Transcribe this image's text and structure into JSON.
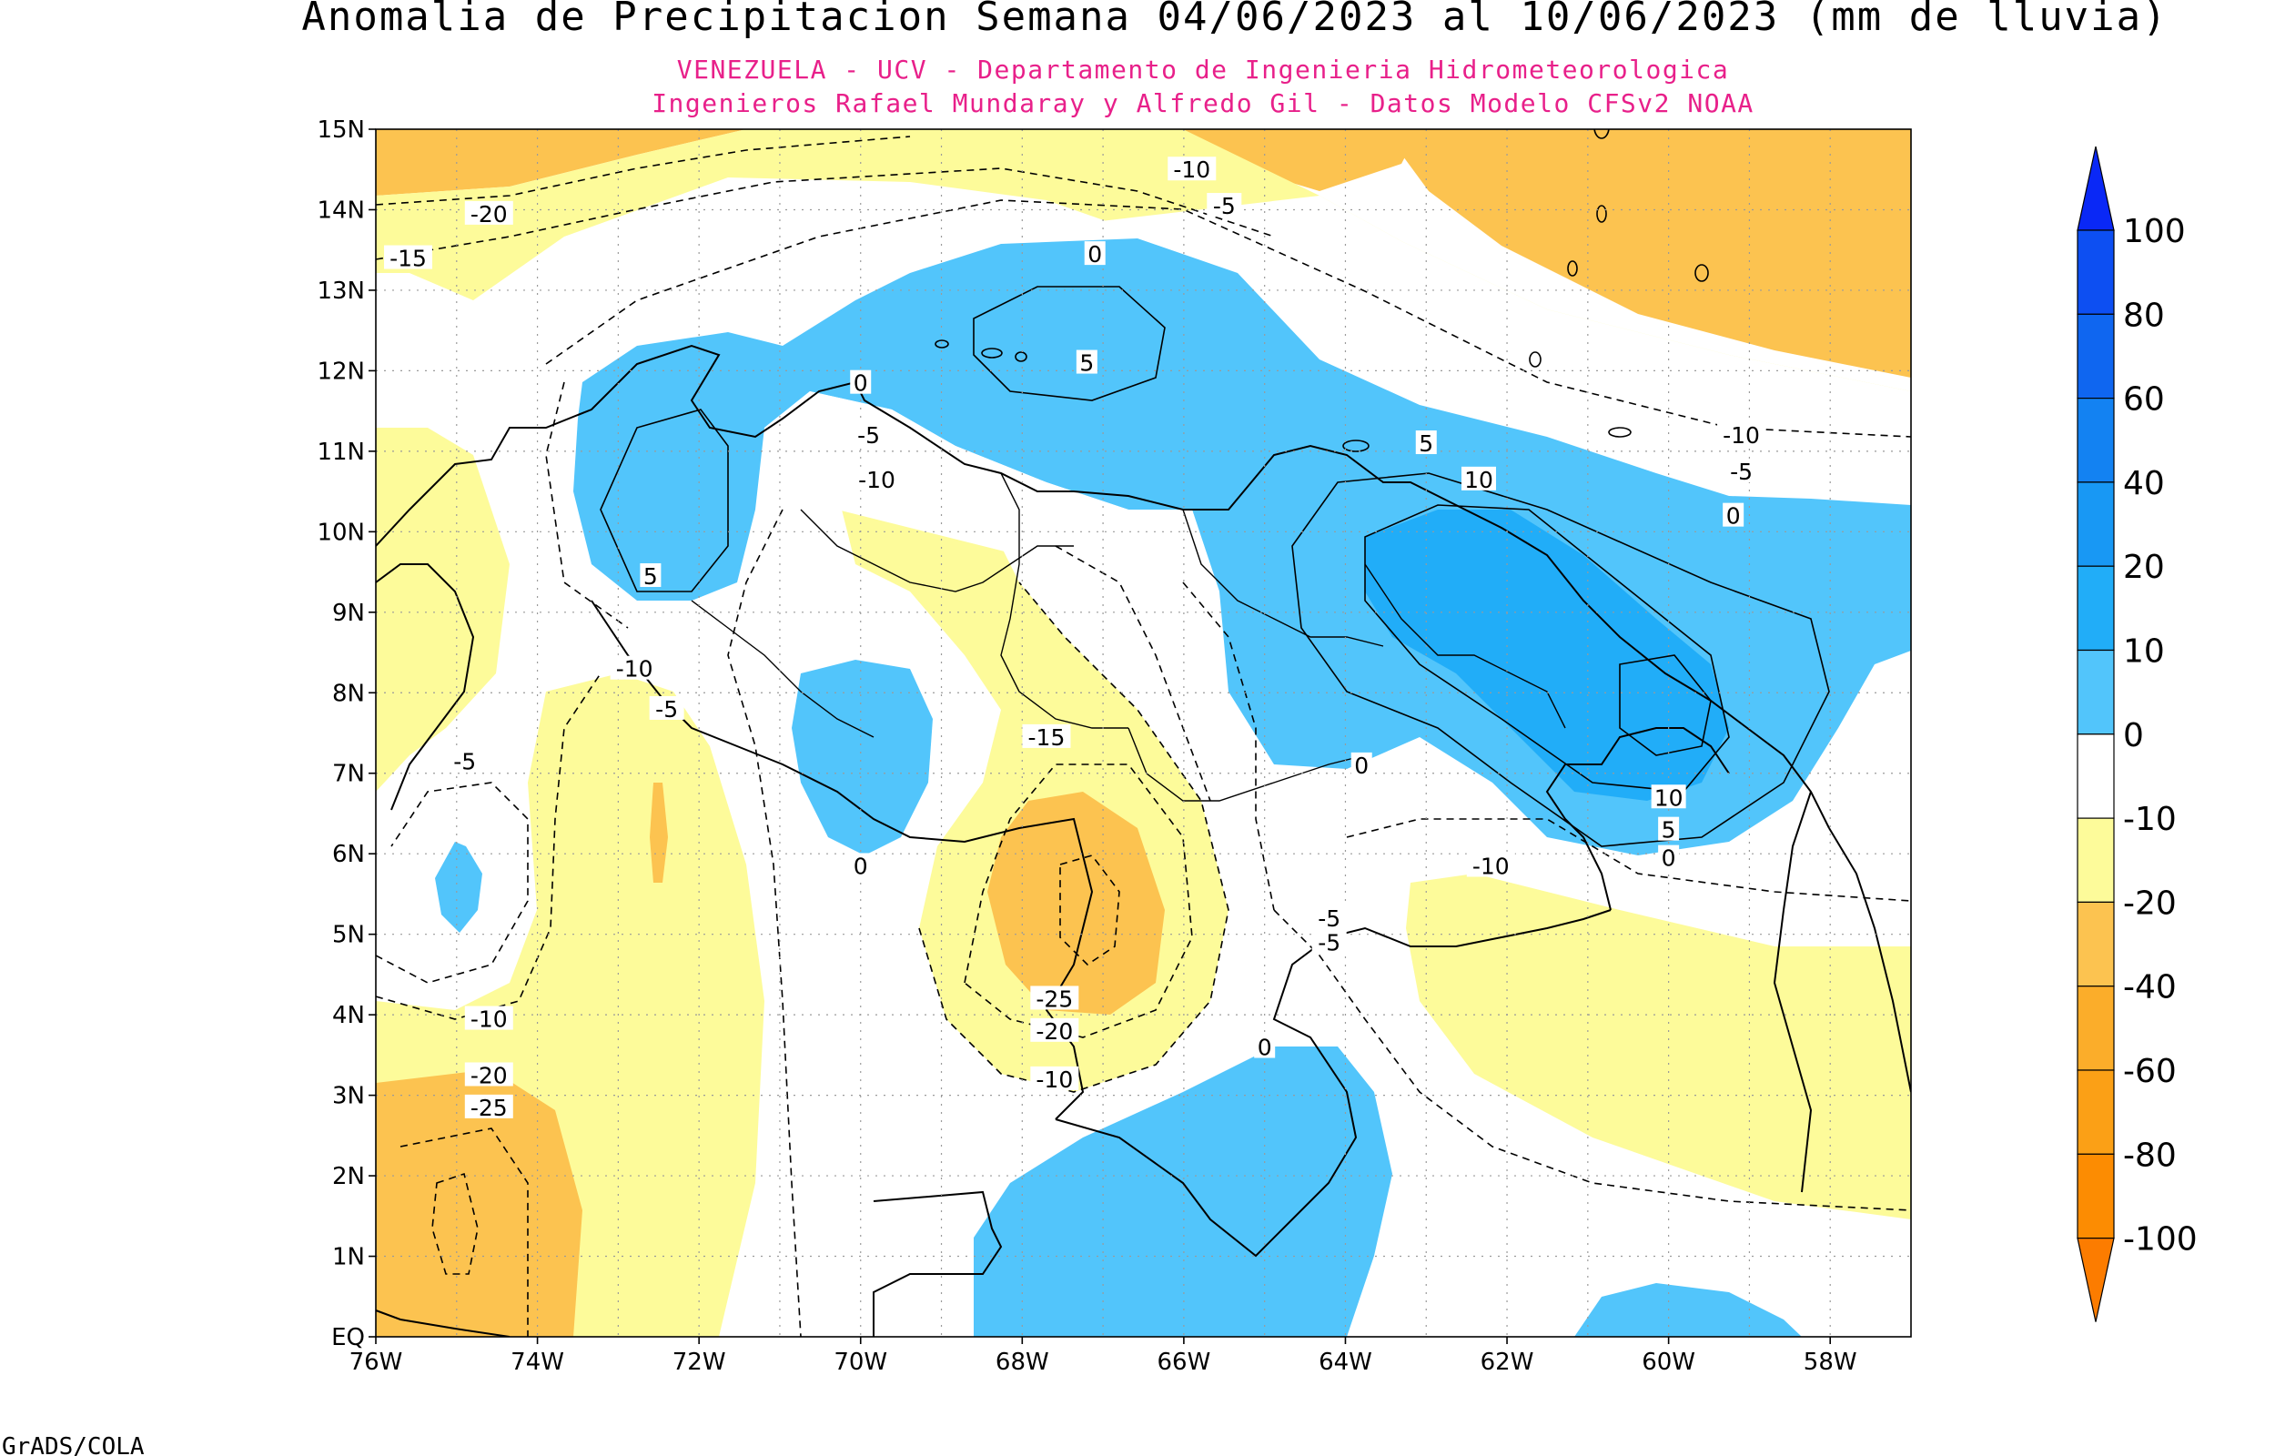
{
  "title": "Anomalia de Precipitacion Semana 04/06/2023 al 10/06/2023 (mm de lluvia)",
  "subtitle_1": "VENEZUELA - UCV - Departamento de Ingenieria Hidrometeorologica",
  "subtitle_2": "Ingenieros Rafael Mundaray y Alfredo Gil - Datos Modelo CFSv2 NOAA",
  "credit": "GrADS/COLA",
  "colors": {
    "subtitle": "#e8208a",
    "positive_0_10": "#52c5fb",
    "positive_10_20": "#21adf8",
    "neutral": "#ffffff",
    "negative_10_20": "#fdfb9a",
    "negative_20_40": "#fcc350",
    "coastline": "#000000"
  },
  "map": {
    "lon_range": [
      -76,
      -57
    ],
    "lat_range": [
      0,
      15
    ],
    "lat_labels": [
      "15N",
      "14N",
      "13N",
      "12N",
      "11N",
      "10N",
      "9N",
      "8N",
      "7N",
      "6N",
      "5N",
      "4N",
      "3N",
      "2N",
      "1N",
      "EQ"
    ],
    "lon_labels": [
      "76W",
      "74W",
      "72W",
      "70W",
      "68W",
      "66W",
      "64W",
      "62W",
      "60W",
      "58W"
    ]
  },
  "contour_labels": [
    {
      "text": "-10",
      "lon": -65.9,
      "lat": 14.5
    },
    {
      "text": "-5",
      "lon": -65.5,
      "lat": 14.05
    },
    {
      "text": "-20",
      "lon": -74.6,
      "lat": 13.95
    },
    {
      "text": "-15",
      "lon": -75.6,
      "lat": 13.4
    },
    {
      "text": "0",
      "lon": -67.1,
      "lat": 13.45
    },
    {
      "text": "5",
      "lon": -67.2,
      "lat": 12.1
    },
    {
      "text": "0",
      "lon": -70.0,
      "lat": 11.85
    },
    {
      "text": "-5",
      "lon": -69.9,
      "lat": 11.2
    },
    {
      "text": "-10",
      "lon": -69.8,
      "lat": 10.65
    },
    {
      "text": "5",
      "lon": -63.0,
      "lat": 11.1
    },
    {
      "text": "10",
      "lon": -62.35,
      "lat": 10.65
    },
    {
      "text": "-10",
      "lon": -59.1,
      "lat": 11.2
    },
    {
      "text": "-5",
      "lon": -59.1,
      "lat": 10.75
    },
    {
      "text": "0",
      "lon": -59.2,
      "lat": 10.2
    },
    {
      "text": "5",
      "lon": -72.6,
      "lat": 9.45
    },
    {
      "text": "-10",
      "lon": -72.8,
      "lat": 8.3
    },
    {
      "text": "-5",
      "lon": -72.4,
      "lat": 7.8
    },
    {
      "text": "-5",
      "lon": -74.9,
      "lat": 7.15
    },
    {
      "text": "-15",
      "lon": -67.7,
      "lat": 7.45
    },
    {
      "text": "0",
      "lon": -63.8,
      "lat": 7.1
    },
    {
      "text": "10",
      "lon": -60.0,
      "lat": 6.7
    },
    {
      "text": "5",
      "lon": -60.0,
      "lat": 6.3
    },
    {
      "text": "0",
      "lon": -60.0,
      "lat": 5.95
    },
    {
      "text": "0",
      "lon": -70.0,
      "lat": 5.85
    },
    {
      "text": "-10",
      "lon": -62.2,
      "lat": 5.85
    },
    {
      "text": "-5",
      "lon": -64.2,
      "lat": 5.2
    },
    {
      "text": "-5",
      "lon": -64.2,
      "lat": 4.9
    },
    {
      "text": "-25",
      "lon": -67.6,
      "lat": 4.2
    },
    {
      "text": "-20",
      "lon": -67.6,
      "lat": 3.8
    },
    {
      "text": "-10",
      "lon": -67.6,
      "lat": 3.2
    },
    {
      "text": "0",
      "lon": -65.0,
      "lat": 3.6
    },
    {
      "text": "-10",
      "lon": -74.6,
      "lat": 3.95
    },
    {
      "text": "-20",
      "lon": -74.6,
      "lat": 3.25
    },
    {
      "text": "-25",
      "lon": -74.6,
      "lat": 2.85
    }
  ],
  "colorbar": {
    "labels": [
      "100",
      "80",
      "60",
      "40",
      "20",
      "10",
      "0",
      "-10",
      "-20",
      "-40",
      "-60",
      "-80",
      "-100"
    ],
    "fills": [
      "#0a28f6",
      "#0d4ff2",
      "#0f66f0",
      "#1382f2",
      "#1898f4",
      "#21adf8",
      "#52c5fb",
      "#ffffff",
      "#fdfb9a",
      "#fcc350",
      "#fbad2a",
      "#fba016",
      "#fc8c02",
      "#fc7c00"
    ]
  }
}
